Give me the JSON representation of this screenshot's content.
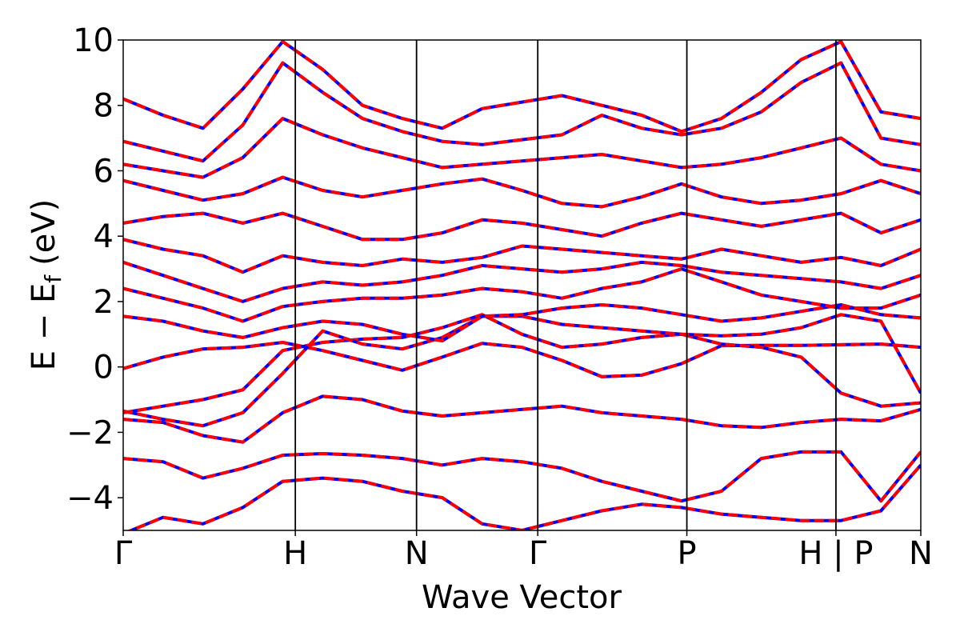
{
  "chart_data": {
    "type": "line",
    "title": "",
    "xlabel": "Wave Vector",
    "ylabel": "E − E",
    "ylabel_subscript": "f",
    "ylabel_unit": "(eV)",
    "ylim": [
      -5,
      10
    ],
    "yticks": [
      -4,
      -2,
      0,
      2,
      4,
      6,
      8,
      10
    ],
    "ytick_labels": [
      "−4",
      "−2",
      "0",
      "2",
      "4",
      "6",
      "8",
      "10"
    ],
    "xlim": [
      0,
      6.58
    ],
    "kpoints": [
      {
        "label": "Γ",
        "x": 0.0
      },
      {
        "label": "H",
        "x": 1.42
      },
      {
        "label": "N",
        "x": 2.42
      },
      {
        "label": "Γ",
        "x": 3.42
      },
      {
        "label": "P",
        "x": 4.65
      },
      {
        "label": "H | P",
        "x": 5.88
      },
      {
        "label": "N",
        "x": 6.58
      }
    ],
    "grid": false,
    "legend": "none",
    "series": [
      {
        "style": "solid",
        "color": "#0000ff",
        "width": 4
      },
      {
        "style": "dashed",
        "color": "#ff0000",
        "width": 4
      }
    ],
    "bands": [
      [
        -0.05,
        0.3,
        0.55,
        0.6,
        0.75,
        0.5,
        0.2,
        -0.1,
        0.3,
        0.72,
        0.6,
        0.2,
        -0.3,
        -0.25,
        0.1,
        0.65,
        0.66,
        0.66,
        0.68,
        0.7,
        0.6
      ],
      [
        -1.4,
        -1.2,
        -1.0,
        -0.7,
        0.5,
        0.75,
        0.85,
        0.9,
        1.2,
        1.6,
        1.0,
        0.6,
        0.7,
        0.9,
        1.0,
        0.7,
        0.6,
        0.3,
        -0.8,
        -1.2,
        -1.1
      ],
      [
        -1.35,
        -1.6,
        -1.8,
        -1.4,
        -0.2,
        1.1,
        0.7,
        0.55,
        0.9,
        1.55,
        1.55,
        1.3,
        1.2,
        1.1,
        1.0,
        0.95,
        1.0,
        1.2,
        1.6,
        1.4,
        -0.8
      ],
      [
        -1.6,
        -1.7,
        -2.1,
        -2.3,
        -1.4,
        -0.9,
        -1.0,
        -1.35,
        -1.5,
        -1.4,
        -1.3,
        -1.2,
        -1.4,
        -1.5,
        -1.6,
        -1.8,
        -1.85,
        -1.7,
        -1.6,
        -1.65,
        -1.3
      ],
      [
        -2.8,
        -2.9,
        -3.4,
        -3.1,
        -2.7,
        -2.65,
        -2.7,
        -2.8,
        -3.0,
        -2.8,
        -2.9,
        -3.1,
        -3.5,
        -3.8,
        -4.1,
        -3.8,
        -2.8,
        -2.6,
        -2.6,
        -4.1,
        -2.6
      ],
      [
        -5.1,
        -4.6,
        -4.8,
        -4.3,
        -3.5,
        -3.4,
        -3.5,
        -3.8,
        -4.0,
        -4.8,
        -5.0,
        -4.7,
        -4.4,
        -4.2,
        -4.3,
        -4.5,
        -4.6,
        -4.7,
        -4.7,
        -4.4,
        -3.0
      ],
      [
        1.55,
        1.4,
        1.1,
        0.9,
        1.2,
        1.4,
        1.3,
        1.0,
        0.8,
        1.55,
        1.6,
        1.8,
        1.9,
        1.8,
        1.6,
        1.4,
        1.5,
        1.7,
        1.9,
        1.6,
        1.5
      ],
      [
        2.4,
        2.1,
        1.8,
        1.4,
        1.85,
        2.0,
        2.1,
        2.1,
        2.2,
        2.4,
        2.3,
        2.1,
        2.4,
        2.6,
        3.0,
        2.6,
        2.2,
        2.0,
        1.8,
        1.8,
        2.2
      ],
      [
        3.2,
        2.8,
        2.4,
        2.0,
        2.4,
        2.6,
        2.5,
        2.6,
        2.8,
        3.1,
        3.0,
        2.9,
        3.0,
        3.2,
        3.1,
        2.9,
        2.8,
        2.7,
        2.6,
        2.4,
        2.8
      ],
      [
        3.9,
        3.6,
        3.4,
        2.9,
        3.4,
        3.2,
        3.1,
        3.3,
        3.2,
        3.35,
        3.7,
        3.6,
        3.5,
        3.4,
        3.3,
        3.6,
        3.4,
        3.2,
        3.35,
        3.1,
        3.6
      ],
      [
        4.4,
        4.6,
        4.7,
        4.4,
        4.7,
        4.3,
        3.9,
        3.9,
        4.1,
        4.5,
        4.4,
        4.2,
        4.0,
        4.4,
        4.7,
        4.5,
        4.3,
        4.5,
        4.7,
        4.1,
        4.5
      ],
      [
        5.7,
        5.4,
        5.1,
        5.3,
        5.8,
        5.4,
        5.2,
        5.4,
        5.6,
        5.75,
        5.4,
        5.0,
        4.9,
        5.2,
        5.6,
        5.2,
        5.0,
        5.1,
        5.3,
        5.7,
        5.3
      ],
      [
        6.2,
        6.0,
        5.8,
        6.4,
        7.6,
        7.1,
        6.7,
        6.4,
        6.1,
        6.2,
        6.3,
        6.4,
        6.5,
        6.3,
        6.1,
        6.2,
        6.4,
        6.7,
        7.0,
        6.2,
        6.0
      ],
      [
        6.9,
        6.6,
        6.3,
        7.4,
        9.3,
        8.4,
        7.6,
        7.2,
        6.9,
        6.8,
        6.95,
        7.1,
        7.7,
        7.3,
        7.1,
        7.3,
        7.8,
        8.7,
        9.3,
        7.0,
        6.8
      ],
      [
        8.2,
        7.7,
        7.3,
        8.5,
        9.95,
        9.1,
        8.0,
        7.6,
        7.3,
        7.9,
        8.1,
        8.3,
        8.0,
        7.7,
        7.2,
        7.6,
        8.4,
        9.4,
        9.95,
        7.8,
        7.6
      ]
    ]
  }
}
